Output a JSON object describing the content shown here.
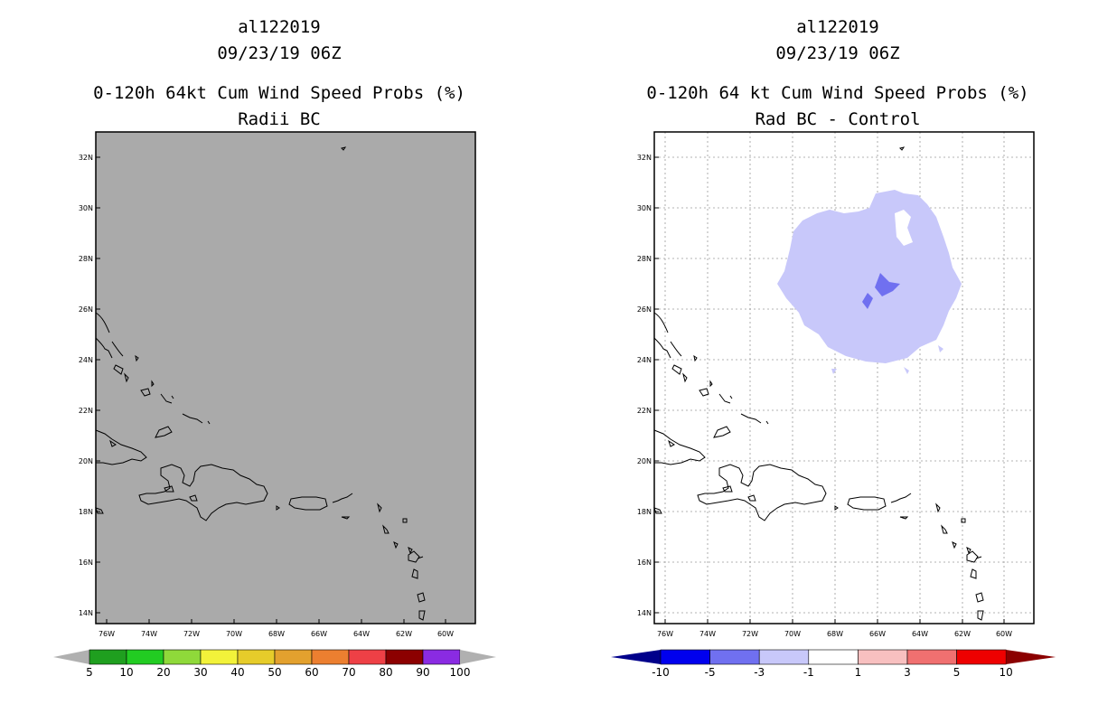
{
  "left_panel": {
    "storm_id": "al122019",
    "datetime": "09/23/19 06Z",
    "title": "0-120h 64kt Cum Wind Speed Probs (%)",
    "subtitle": "Radii BC",
    "colorbar": {
      "labels": [
        "5",
        "10",
        "20",
        "30",
        "40",
        "50",
        "60",
        "70",
        "80",
        "90",
        "100"
      ],
      "colors": [
        "#1f9f1f",
        "#22cc22",
        "#8fd93a",
        "#f2f23a",
        "#e6cc2a",
        "#e3a12e",
        "#ec7f30",
        "#ee4046",
        "#8c0000",
        "#8a2be2"
      ],
      "extend_color": "#b0b0b0"
    },
    "background_color": "#aaaaaa"
  },
  "right_panel": {
    "storm_id": "al122019",
    "datetime": "09/23/19 06Z",
    "title": "0-120h 64 kt Cum Wind Speed Probs (%)",
    "subtitle": "Rad BC - Control",
    "colorbar": {
      "labels": [
        "-10",
        "-5",
        "-3",
        "-1",
        "1",
        "3",
        "5",
        "10"
      ],
      "colors": [
        "#0000ee",
        "#7070f0",
        "#c8c8fa",
        "#ffffff",
        "#f8c0c0",
        "#f07070",
        "#ee0000"
      ],
      "low_extend_color": "#00008b",
      "high_extend_color": "#8b0000"
    },
    "fill_light": "#c8c8fa",
    "fill_dark": "#7070f0"
  },
  "map": {
    "x_ticks": [
      "76W",
      "74W",
      "72W",
      "70W",
      "68W",
      "66W",
      "64W",
      "62W",
      "60W"
    ],
    "y_ticks": [
      "32N",
      "30N",
      "28N",
      "26N",
      "24N",
      "22N",
      "20N",
      "18N",
      "16N",
      "14N"
    ],
    "lon_range": [
      -76.5,
      -59.1
    ],
    "lat_range": [
      13.6,
      33.1
    ]
  }
}
